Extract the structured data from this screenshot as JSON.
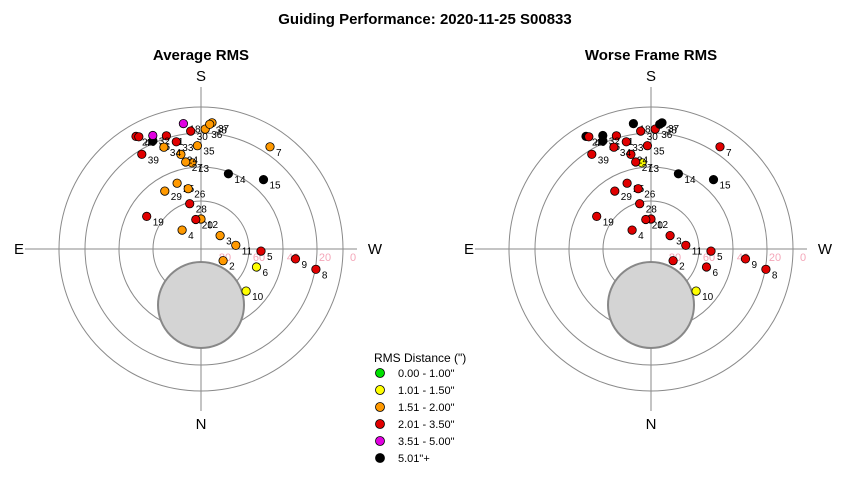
{
  "title": "Guiding Performance: 2020-11-25 S00833",
  "compass": {
    "north": "N",
    "south": "S",
    "east": "E",
    "west": "W"
  },
  "altitude_ticks": [
    "80",
    "60",
    "40",
    "20",
    "0"
  ],
  "legend": {
    "title": "RMS Distance (\")",
    "items": [
      {
        "label": "0.00 - 1.00\"",
        "color": "#00e000"
      },
      {
        "label": "1.01 - 1.50\"",
        "color": "#ffff00"
      },
      {
        "label": "1.51 - 2.00\"",
        "color": "#ff9900"
      },
      {
        "label": "2.01 - 3.50\"",
        "color": "#e00000"
      },
      {
        "label": "3.51 - 5.00\"",
        "color": "#e000e0"
      },
      {
        "label": "5.01\"+",
        "color": "#000000"
      }
    ]
  },
  "chart_data": [
    {
      "type": "scatter",
      "projection": "polar-sky",
      "title": "Average RMS",
      "r_unit": "zenith distance (deg)",
      "points": [
        {
          "label": "2",
          "az": 298,
          "zd": 15,
          "color": "#ff9900"
        },
        {
          "label": "3",
          "az": 235,
          "zd": 14,
          "color": "#ff9900"
        },
        {
          "label": "4",
          "az": 135,
          "zd": 16,
          "color": "#ff9900"
        },
        {
          "label": "5",
          "az": 272,
          "zd": 36,
          "color": "#e00000"
        },
        {
          "label": "6",
          "az": 288,
          "zd": 35,
          "color": "#ffff00"
        },
        {
          "label": "7",
          "az": 214,
          "zd": 74,
          "color": "#ff9900"
        },
        {
          "label": "8",
          "az": 280,
          "zd": 70,
          "color": "#e00000"
        },
        {
          "label": "9",
          "az": 276,
          "zd": 57,
          "color": "#e00000"
        },
        {
          "label": "10",
          "az": 313,
          "zd": 37,
          "color": "#ffff00"
        },
        {
          "label": "11",
          "az": 264,
          "zd": 21,
          "color": "#ff9900"
        },
        {
          "label": "12",
          "az": 180,
          "zd": 18,
          "color": "#ff9900"
        },
        {
          "label": "13",
          "az": 174,
          "zd": 52,
          "color": "#ff9900"
        },
        {
          "label": "14",
          "az": 200,
          "zd": 48,
          "color": "#000000"
        },
        {
          "label": "15",
          "az": 222,
          "zd": 56,
          "color": "#000000"
        },
        {
          "label": "16",
          "az": 156,
          "zd": 71,
          "color": "#000000"
        },
        {
          "label": "18",
          "az": 172,
          "zd": 76,
          "color": "#e000e0"
        },
        {
          "label": "19",
          "az": 121,
          "zd": 38,
          "color": "#e00000"
        },
        {
          "label": "20",
          "az": 170,
          "zd": 18,
          "color": "#e00000"
        },
        {
          "label": "22",
          "az": 150,
          "zd": 78,
          "color": "#e00000"
        },
        {
          "label": "24",
          "az": 168,
          "zd": 58,
          "color": "#ff9900"
        },
        {
          "label": "25",
          "az": 160,
          "zd": 42,
          "color": "#ff9900"
        },
        {
          "label": "26",
          "az": 168,
          "zd": 37,
          "color": "#ff9900"
        },
        {
          "label": "27",
          "az": 170,
          "zd": 53,
          "color": "#ff9900"
        },
        {
          "label": "28",
          "az": 166,
          "zd": 28,
          "color": "#e00000"
        },
        {
          "label": "29",
          "az": 148,
          "zd": 41,
          "color": "#ff9900"
        },
        {
          "label": "30",
          "az": 175,
          "zd": 71,
          "color": "#e00000"
        },
        {
          "label": "31",
          "az": 163,
          "zd": 71,
          "color": "#e00000"
        },
        {
          "label": "32",
          "az": 157,
          "zd": 74,
          "color": "#e000e0"
        },
        {
          "label": "33",
          "az": 167,
          "zd": 66,
          "color": "#e00000"
        },
        {
          "label": "34",
          "az": 160,
          "zd": 65,
          "color": "#ff9900"
        },
        {
          "label": "35",
          "az": 178,
          "zd": 62,
          "color": "#ff9900"
        },
        {
          "label": "36",
          "az": 182,
          "zd": 72,
          "color": "#ff9900"
        },
        {
          "label": "37",
          "az": 185,
          "zd": 76,
          "color": "#ff9900"
        },
        {
          "label": "38",
          "az": 184,
          "zd": 75,
          "color": "#ff9900"
        },
        {
          "label": "39",
          "az": 148,
          "zd": 67,
          "color": "#e00000"
        },
        {
          "label": "40",
          "az": 151,
          "zd": 77,
          "color": "#e00000"
        }
      ]
    },
    {
      "type": "scatter",
      "projection": "polar-sky",
      "title": "Worse Frame RMS",
      "r_unit": "zenith distance (deg)",
      "points": [
        {
          "label": "2",
          "az": 298,
          "zd": 15,
          "color": "#e00000"
        },
        {
          "label": "3",
          "az": 235,
          "zd": 14,
          "color": "#e00000"
        },
        {
          "label": "4",
          "az": 135,
          "zd": 16,
          "color": "#e00000"
        },
        {
          "label": "5",
          "az": 272,
          "zd": 36,
          "color": "#e00000"
        },
        {
          "label": "6",
          "az": 288,
          "zd": 35,
          "color": "#e00000"
        },
        {
          "label": "7",
          "az": 214,
          "zd": 74,
          "color": "#e00000"
        },
        {
          "label": "8",
          "az": 280,
          "zd": 70,
          "color": "#e00000"
        },
        {
          "label": "9",
          "az": 276,
          "zd": 57,
          "color": "#e00000"
        },
        {
          "label": "10",
          "az": 313,
          "zd": 37,
          "color": "#ffff00"
        },
        {
          "label": "11",
          "az": 264,
          "zd": 21,
          "color": "#e00000"
        },
        {
          "label": "12",
          "az": 180,
          "zd": 18,
          "color": "#e00000"
        },
        {
          "label": "13",
          "az": 174,
          "zd": 52,
          "color": "#ffff00"
        },
        {
          "label": "14",
          "az": 200,
          "zd": 48,
          "color": "#000000"
        },
        {
          "label": "15",
          "az": 222,
          "zd": 56,
          "color": "#000000"
        },
        {
          "label": "16",
          "az": 156,
          "zd": 71,
          "color": "#000000"
        },
        {
          "label": "18",
          "az": 172,
          "zd": 76,
          "color": "#000000"
        },
        {
          "label": "19",
          "az": 121,
          "zd": 38,
          "color": "#e00000"
        },
        {
          "label": "20",
          "az": 170,
          "zd": 18,
          "color": "#e00000"
        },
        {
          "label": "22",
          "az": 150,
          "zd": 78,
          "color": "#000000"
        },
        {
          "label": "24",
          "az": 168,
          "zd": 58,
          "color": "#e00000"
        },
        {
          "label": "25",
          "az": 160,
          "zd": 42,
          "color": "#e00000"
        },
        {
          "label": "26",
          "az": 168,
          "zd": 37,
          "color": "#e00000"
        },
        {
          "label": "27",
          "az": 170,
          "zd": 53,
          "color": "#e00000"
        },
        {
          "label": "28",
          "az": 166,
          "zd": 28,
          "color": "#e00000"
        },
        {
          "label": "29",
          "az": 148,
          "zd": 41,
          "color": "#e00000"
        },
        {
          "label": "30",
          "az": 175,
          "zd": 71,
          "color": "#e00000"
        },
        {
          "label": "31",
          "az": 163,
          "zd": 71,
          "color": "#e00000"
        },
        {
          "label": "32",
          "az": 157,
          "zd": 74,
          "color": "#000000"
        },
        {
          "label": "33",
          "az": 167,
          "zd": 66,
          "color": "#e00000"
        },
        {
          "label": "34",
          "az": 160,
          "zd": 65,
          "color": "#e00000"
        },
        {
          "label": "35",
          "az": 178,
          "zd": 62,
          "color": "#e00000"
        },
        {
          "label": "36",
          "az": 182,
          "zd": 72,
          "color": "#e00000"
        },
        {
          "label": "37",
          "az": 185,
          "zd": 76,
          "color": "#000000"
        },
        {
          "label": "38",
          "az": 184,
          "zd": 75,
          "color": "#000000"
        },
        {
          "label": "39",
          "az": 148,
          "zd": 67,
          "color": "#e00000"
        },
        {
          "label": "40",
          "az": 151,
          "zd": 77,
          "color": "#e00000"
        }
      ]
    }
  ]
}
